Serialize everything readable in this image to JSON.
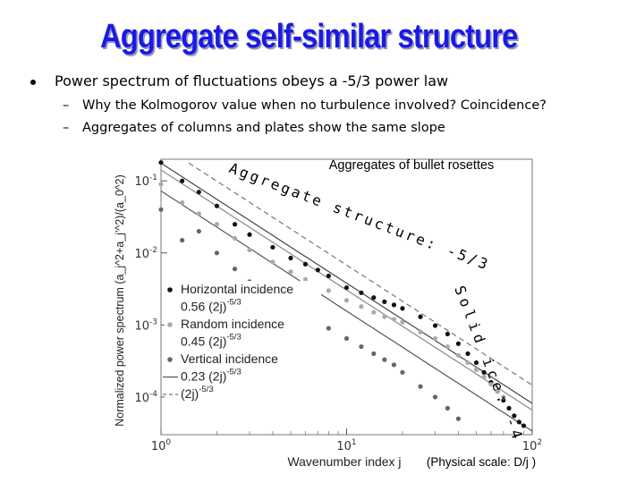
{
  "slide": {
    "title": "Aggregate self-similar structure",
    "bullet": "Power spectrum of fluctuations obeys a -5/3 power law",
    "subbullets": [
      "Why the Kolmogorov value when no turbulence involved? Coincidence?",
      "Aggregates of columns and plates show the same slope"
    ]
  },
  "chart_data": {
    "type": "scatter",
    "title": "Aggregates of bullet rosettes",
    "xlabel": "Wavenumber index j",
    "xlabel_note": "(Physical scale: D/j )",
    "ylabel": "Normalized power spectrum (a_j^2+a_j'^2)/(a_0^2)",
    "xscale": "log",
    "yscale": "log",
    "xlim": [
      1,
      100
    ],
    "ylim": [
      3e-05,
      0.2
    ],
    "x_ticks": [
      "10^0",
      "10^1",
      "10^2"
    ],
    "y_ticks": [
      "10^-1",
      "10^-2",
      "10^-3",
      "10^-4",
      "10^-5"
    ],
    "series": [
      {
        "name": "Horizontal incidence",
        "marker": "dot",
        "color": "#111111",
        "x": [
          1,
          1.3,
          1.6,
          2,
          2.5,
          3,
          4,
          5,
          6,
          7,
          8,
          10,
          12,
          14,
          16,
          18,
          20,
          25,
          30,
          35,
          40,
          45,
          50,
          55,
          60,
          65,
          70,
          75,
          80,
          85,
          90
        ],
        "y": [
          0.18,
          0.1,
          0.07,
          0.045,
          0.025,
          0.018,
          0.012,
          0.0085,
          0.007,
          0.0058,
          0.0048,
          0.0033,
          0.0028,
          0.0024,
          0.0021,
          0.0019,
          0.0017,
          0.0013,
          0.00098,
          0.00075,
          0.00055,
          0.0004,
          0.0003,
          0.00022,
          0.00016,
          0.00012,
          9e-05,
          7e-05,
          5.5e-05,
          4.5e-05,
          4e-05
        ]
      },
      {
        "name": "Random incidence",
        "marker": "dot",
        "color": "#aaaaaa",
        "x": [
          1,
          1.3,
          1.6,
          2,
          2.5,
          3,
          4,
          5,
          6,
          7,
          8,
          10,
          12,
          14,
          16,
          18,
          20,
          25,
          30,
          35,
          40,
          45,
          50,
          55,
          60,
          65,
          70
        ],
        "y": [
          0.09,
          0.05,
          0.035,
          0.025,
          0.016,
          0.011,
          0.0075,
          0.0055,
          0.0043,
          0.0035,
          0.003,
          0.0022,
          0.0018,
          0.0015,
          0.0013,
          0.0012,
          0.0011,
          0.0008,
          0.00065,
          0.0005,
          0.00038,
          0.0003,
          0.00024,
          0.00019,
          0.00015,
          0.00012,
          0.0001
        ]
      },
      {
        "name": "Vertical incidence",
        "marker": "dot",
        "color": "#666666",
        "x": [
          1,
          1.3,
          1.6,
          2,
          2.5,
          3,
          4,
          5,
          6,
          7,
          8,
          10,
          12,
          14,
          16,
          18,
          20,
          25,
          30,
          35,
          40
        ],
        "y": [
          0.04,
          0.015,
          0.02,
          0.01,
          0.006,
          0.004,
          0.0025,
          0.0018,
          0.0013,
          0.0011,
          0.0009,
          0.00065,
          0.0005,
          0.0004,
          0.00033,
          0.00028,
          0.00022,
          0.00014,
          0.0001,
          7e-05,
          5e-05
        ]
      }
    ],
    "lines": [
      {
        "name": "0.56 (2j)^-5/3",
        "coef": 0.56,
        "style": "solid",
        "color": "#444444"
      },
      {
        "name": "0.45 (2j)^-5/3",
        "coef": 0.45,
        "style": "solid",
        "color": "#888888"
      },
      {
        "name": "0.23 (2j)^-5/3",
        "coef": 0.23,
        "style": "solid",
        "color": "#555555"
      },
      {
        "name": "(2j)^-5/3",
        "coef": 1.0,
        "style": "dashed",
        "color": "#777777"
      }
    ],
    "legend": {
      "placement": "bottom-left",
      "entries": [
        {
          "label": "Horizontal incidence",
          "kind": "dot",
          "color": "#111111"
        },
        {
          "label": "0.56 (2j)",
          "exp": "-5/3",
          "kind": "none"
        },
        {
          "label": "Random incidence",
          "kind": "dot",
          "color": "#aaaaaa"
        },
        {
          "label": "0.45 (2j)",
          "exp": "-5/3",
          "kind": "none"
        },
        {
          "label": "Vertical incidence",
          "kind": "dot",
          "color": "#666666"
        },
        {
          "label": "0.23 (2j)",
          "exp": "-5/3",
          "kind": "solid",
          "color": "#555555"
        },
        {
          "label": "(2j)",
          "exp": "-5/3",
          "kind": "dashed",
          "color": "#777777"
        }
      ]
    },
    "annotations": [
      {
        "text": "Aggregate structure: -5/3",
        "color": "#000000"
      },
      {
        "text": "Solid ice: -4",
        "color": "#000000"
      }
    ]
  }
}
